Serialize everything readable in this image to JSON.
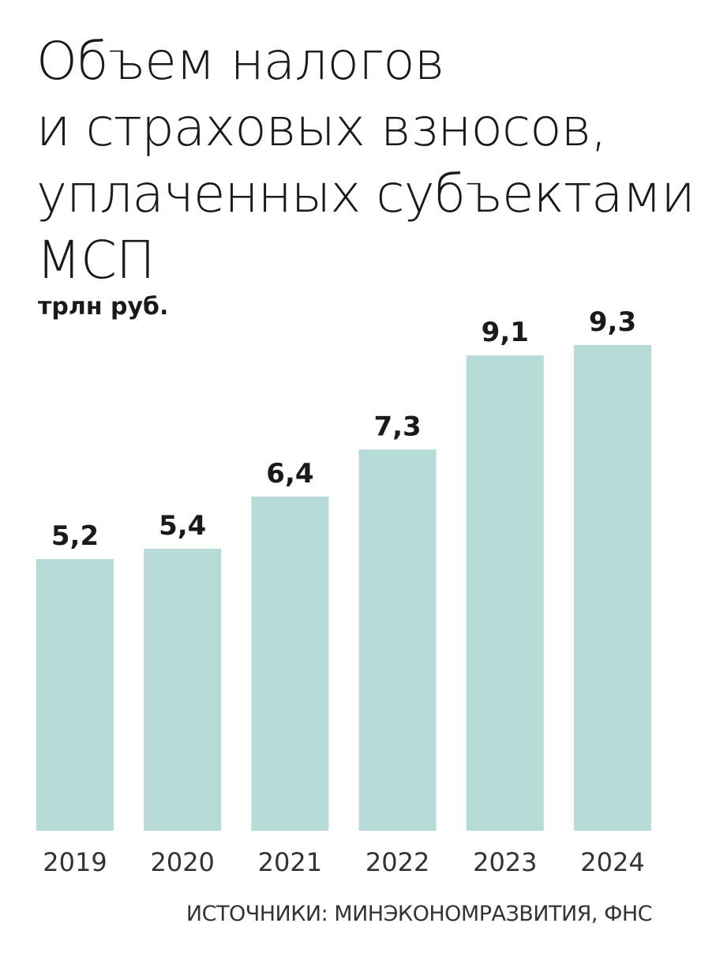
{
  "title_lines": [
    "Объем налогов",
    "и страховых взносов,",
    "уплаченных субъектами",
    "МСП"
  ],
  "unit": "трлн руб.",
  "source": "ИСТОЧНИКИ: МИНЭКОНОМРАЗВИТИЯ, ФНС",
  "colors": {
    "bar": "#b7dbd6",
    "text": "#1a1a1a"
  },
  "chart_data": {
    "type": "bar",
    "title": "Объем налогов и страховых взносов, уплаченных субъектами МСП",
    "ylabel": "трлн руб.",
    "categories": [
      "2019",
      "2020",
      "2021",
      "2022",
      "2023",
      "2024"
    ],
    "values": [
      5.2,
      5.4,
      6.4,
      7.3,
      9.1,
      9.3
    ],
    "value_labels": [
      "5,2",
      "5,4",
      "6,4",
      "7,3",
      "9,1",
      "9,3"
    ],
    "ylim": [
      0,
      9.3
    ],
    "grid": false,
    "legend": "none"
  }
}
